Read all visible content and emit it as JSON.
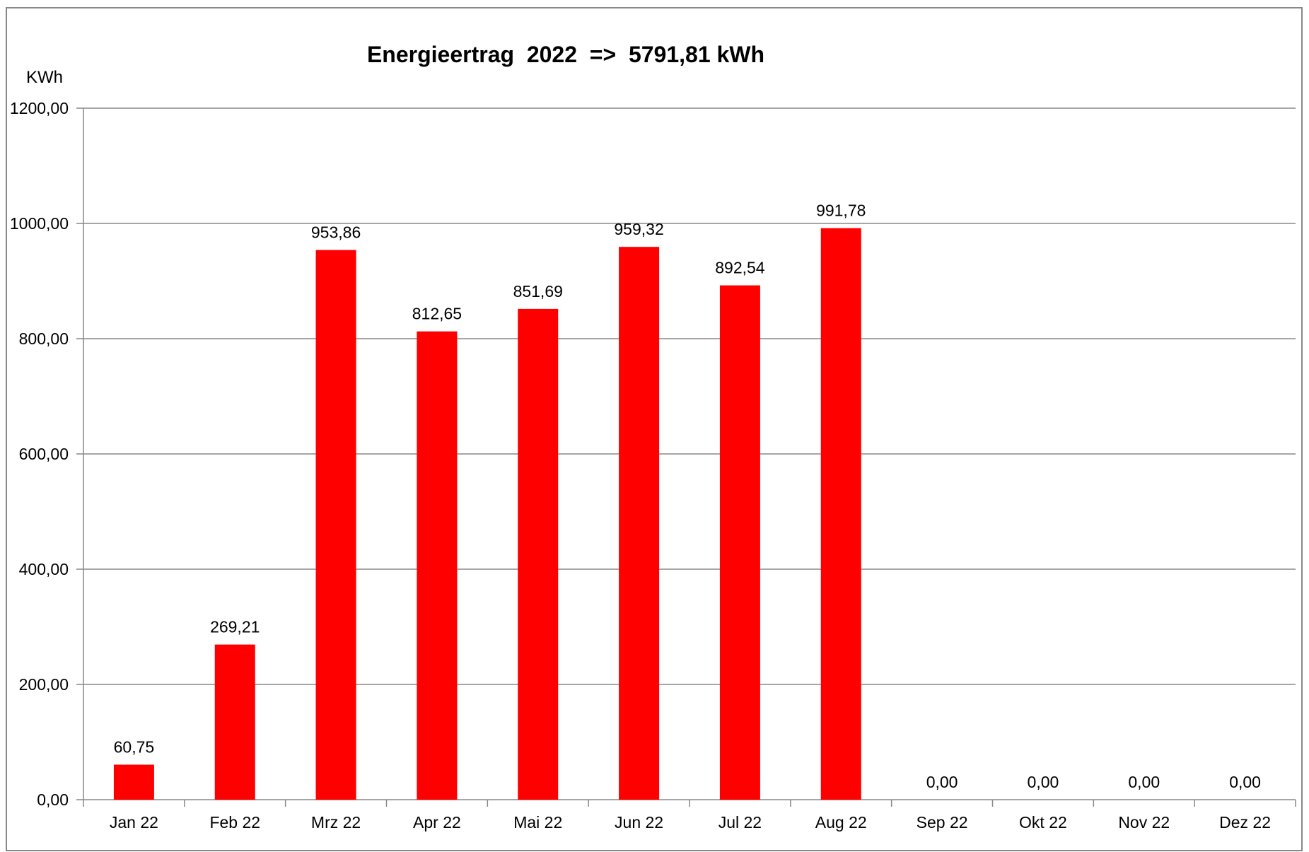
{
  "chart_data": {
    "type": "bar",
    "title": "Energieertrag  2022  =>  5791,81 kWh",
    "ylabel": "KWh",
    "xlabel": "",
    "categories": [
      "Jan 22",
      "Feb 22",
      "Mrz 22",
      "Apr 22",
      "Mai 22",
      "Jun 22",
      "Jul 22",
      "Aug 22",
      "Sep 22",
      "Okt 22",
      "Nov 22",
      "Dez 22"
    ],
    "values": [
      60.75,
      269.21,
      953.86,
      812.65,
      851.69,
      959.32,
      892.54,
      991.78,
      0,
      0,
      0,
      0
    ],
    "value_labels": [
      "60,75",
      "269,21",
      "953,86",
      "812,65",
      "851,69",
      "959,32",
      "892,54",
      "991,78",
      "0,00",
      "0,00",
      "0,00",
      "0,00"
    ],
    "ylim": [
      0,
      1200
    ],
    "yticks": [
      0,
      200,
      400,
      600,
      800,
      1000,
      1200
    ],
    "ytick_labels": [
      "0,00",
      "200,00",
      "400,00",
      "600,00",
      "800,00",
      "1000,00",
      "1200,00"
    ],
    "grid": true,
    "bar_color": "#ff0000",
    "grid_color": "#888888",
    "border_color": "#888888"
  }
}
